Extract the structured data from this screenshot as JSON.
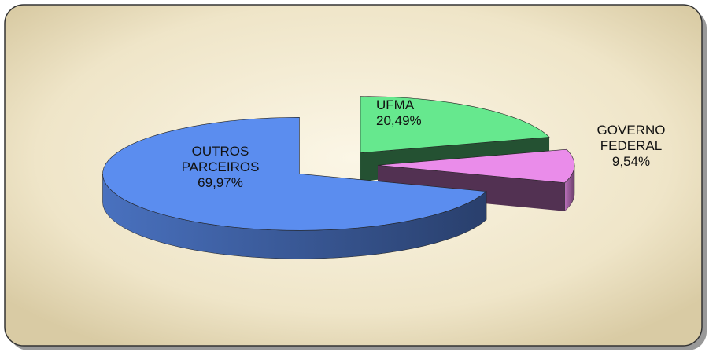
{
  "chart_data": {
    "type": "pie3d",
    "categories": [
      "OUTROS PARCEIROS",
      "UFMA",
      "GOVERNO FEDERAL"
    ],
    "values": [
      69.97,
      20.49,
      9.54
    ],
    "value_labels": [
      "69,97%",
      "20,49%",
      "9,54%"
    ],
    "colors": [
      "#5b8def",
      "#66e88e",
      "#ea8cea"
    ]
  }
}
